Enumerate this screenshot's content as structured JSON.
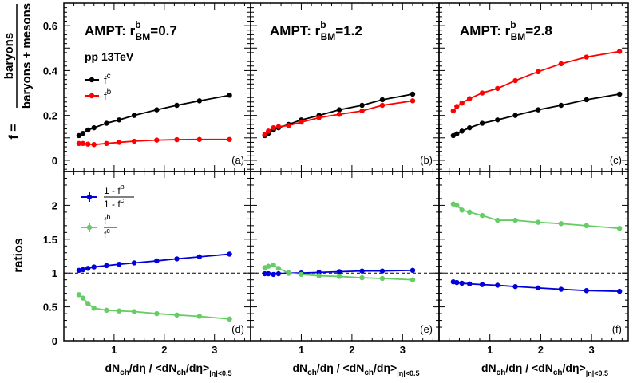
{
  "figure": {
    "ylabel_top_prefix": "f =",
    "ylabel_top_num": "baryons",
    "ylabel_top_den": "baryons + mesons",
    "ylabel_bottom": "ratios",
    "xlabel_main": "dN",
    "xlabel_sub": "ch",
    "xlabel_mid": "/dη / <dN",
    "xlabel_sub2": "ch",
    "xlabel_end": "/dη>",
    "xlabel_range": "|η|<0.5",
    "energy_label": "pp 13TeV",
    "colors": {
      "fc": "#000000",
      "fb": "#ff0000",
      "ratio1": "#0000dd",
      "ratio2": "#66cc66"
    }
  },
  "chart_data": [
    {
      "type": "line",
      "panel": "a",
      "label": "(a)",
      "model_label": "AMPT: r",
      "model_sup": "b",
      "model_sub": "BM",
      "model_value": "=0.7",
      "ylim": [
        -0.05,
        0.7
      ],
      "yticks": [
        0,
        0.2,
        0.4,
        0.6
      ],
      "ytick_labels": [
        "0",
        "0.2",
        "0.4",
        "0.6"
      ],
      "legend": [
        {
          "series": "fc",
          "sup": "c"
        },
        {
          "series": "fb",
          "sup": "b"
        }
      ],
      "series": [
        {
          "key": "fc",
          "x": [
            0.3,
            0.38,
            0.48,
            0.6,
            0.85,
            1.1,
            1.4,
            1.85,
            2.25,
            2.7,
            3.3
          ],
          "y": [
            0.11,
            0.12,
            0.135,
            0.145,
            0.165,
            0.18,
            0.2,
            0.225,
            0.245,
            0.265,
            0.29
          ]
        },
        {
          "key": "fb",
          "x": [
            0.3,
            0.38,
            0.48,
            0.6,
            0.85,
            1.1,
            1.4,
            1.85,
            2.25,
            2.7,
            3.3
          ],
          "y": [
            0.075,
            0.075,
            0.072,
            0.07,
            0.075,
            0.08,
            0.085,
            0.09,
            0.092,
            0.093,
            0.093
          ]
        }
      ]
    },
    {
      "type": "line",
      "panel": "b",
      "label": "(b)",
      "model_label": "AMPT: r",
      "model_sup": "b",
      "model_sub": "BM",
      "model_value": "=1.2",
      "ylim": [
        -0.05,
        0.7
      ],
      "series": [
        {
          "key": "fc",
          "x": [
            0.28,
            0.35,
            0.45,
            0.55,
            0.75,
            1.0,
            1.35,
            1.75,
            2.2,
            2.6,
            3.2
          ],
          "y": [
            0.11,
            0.12,
            0.135,
            0.145,
            0.16,
            0.18,
            0.2,
            0.225,
            0.245,
            0.27,
            0.295
          ]
        },
        {
          "key": "fb",
          "x": [
            0.28,
            0.35,
            0.45,
            0.55,
            0.75,
            1.0,
            1.35,
            1.75,
            2.2,
            2.6,
            3.2
          ],
          "y": [
            0.115,
            0.13,
            0.145,
            0.15,
            0.155,
            0.17,
            0.19,
            0.205,
            0.22,
            0.245,
            0.265
          ]
        }
      ]
    },
    {
      "type": "line",
      "panel": "c",
      "label": "(c)",
      "model_label": "AMPT: r",
      "model_sup": "b",
      "model_sub": "BM",
      "model_value": "=2.8",
      "ylim": [
        -0.05,
        0.7
      ],
      "series": [
        {
          "key": "fc",
          "x": [
            0.28,
            0.35,
            0.45,
            0.6,
            0.85,
            1.15,
            1.5,
            1.95,
            2.4,
            2.9,
            3.55
          ],
          "y": [
            0.11,
            0.118,
            0.13,
            0.145,
            0.165,
            0.18,
            0.2,
            0.225,
            0.245,
            0.27,
            0.295
          ]
        },
        {
          "key": "fb",
          "x": [
            0.28,
            0.35,
            0.45,
            0.6,
            0.85,
            1.15,
            1.5,
            1.95,
            2.4,
            2.9,
            3.55
          ],
          "y": [
            0.22,
            0.24,
            0.255,
            0.275,
            0.3,
            0.32,
            0.355,
            0.395,
            0.43,
            0.46,
            0.485
          ]
        }
      ]
    },
    {
      "type": "line",
      "panel": "d",
      "label": "(d)",
      "ylim": [
        0,
        2.5
      ],
      "yticks": [
        0,
        0.5,
        1,
        1.5,
        2
      ],
      "ytick_labels": [
        "0",
        "0.5",
        "1",
        "1.5",
        "2"
      ],
      "xticks": [
        1,
        2,
        3
      ],
      "xtick_labels": [
        "1",
        "2",
        "3"
      ],
      "legend_ratio": [
        {
          "series": "ratio1",
          "num": "1 - f",
          "num_sup": "b",
          "den": "1 - f",
          "den_sup": "c"
        },
        {
          "series": "ratio2",
          "num": "f",
          "num_sup": "b",
          "den": "f",
          "den_sup": "c"
        }
      ],
      "series": [
        {
          "key": "ratio1",
          "x": [
            0.3,
            0.38,
            0.48,
            0.6,
            0.85,
            1.1,
            1.4,
            1.85,
            2.25,
            2.7,
            3.3
          ],
          "y": [
            1.04,
            1.05,
            1.07,
            1.09,
            1.11,
            1.13,
            1.15,
            1.18,
            1.21,
            1.24,
            1.28
          ]
        },
        {
          "key": "ratio2",
          "x": [
            0.3,
            0.38,
            0.48,
            0.6,
            0.85,
            1.1,
            1.4,
            1.85,
            2.25,
            2.7,
            3.3
          ],
          "y": [
            0.68,
            0.63,
            0.55,
            0.48,
            0.45,
            0.44,
            0.43,
            0.4,
            0.38,
            0.36,
            0.32
          ]
        }
      ]
    },
    {
      "type": "line",
      "panel": "e",
      "label": "(e)",
      "ylim": [
        0,
        2.5
      ],
      "xticks": [
        1,
        2,
        3
      ],
      "xtick_labels": [
        "1",
        "2",
        "3"
      ],
      "series": [
        {
          "key": "ratio1",
          "x": [
            0.28,
            0.35,
            0.45,
            0.55,
            0.75,
            1.0,
            1.35,
            1.75,
            2.2,
            2.6,
            3.2
          ],
          "y": [
            0.99,
            0.99,
            0.98,
            0.99,
            1.0,
            1.0,
            1.01,
            1.02,
            1.03,
            1.03,
            1.04
          ]
        },
        {
          "key": "ratio2",
          "x": [
            0.28,
            0.35,
            0.45,
            0.55,
            0.75,
            1.0,
            1.35,
            1.75,
            2.2,
            2.6,
            3.2
          ],
          "y": [
            1.08,
            1.1,
            1.12,
            1.07,
            1.0,
            0.98,
            0.96,
            0.95,
            0.93,
            0.92,
            0.9
          ]
        }
      ]
    },
    {
      "type": "line",
      "panel": "f",
      "label": "(f)",
      "ylim": [
        0,
        2.5
      ],
      "xticks": [
        1,
        2,
        3
      ],
      "xtick_labels": [
        "1",
        "2",
        "3"
      ],
      "series": [
        {
          "key": "ratio1",
          "x": [
            0.28,
            0.35,
            0.45,
            0.6,
            0.85,
            1.15,
            1.5,
            1.95,
            2.4,
            2.9,
            3.55
          ],
          "y": [
            0.87,
            0.86,
            0.85,
            0.84,
            0.83,
            0.82,
            0.8,
            0.78,
            0.76,
            0.74,
            0.73
          ]
        },
        {
          "key": "ratio2",
          "x": [
            0.28,
            0.35,
            0.45,
            0.6,
            0.85,
            1.15,
            1.5,
            1.95,
            2.4,
            2.9,
            3.55
          ],
          "y": [
            2.02,
            2.0,
            1.93,
            1.9,
            1.85,
            1.78,
            1.78,
            1.75,
            1.73,
            1.7,
            1.66
          ]
        }
      ]
    }
  ]
}
